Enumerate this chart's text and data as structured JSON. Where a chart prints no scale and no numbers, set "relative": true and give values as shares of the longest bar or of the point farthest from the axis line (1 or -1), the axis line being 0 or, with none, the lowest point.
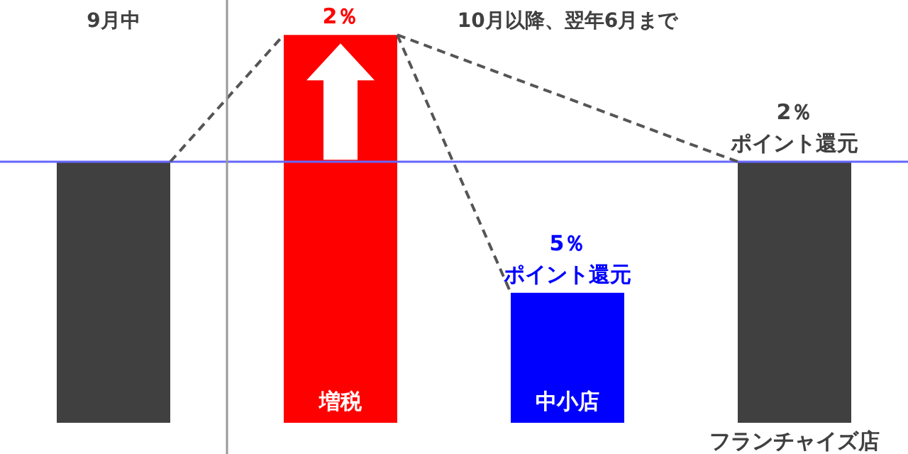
{
  "chart_data": {
    "type": "bar",
    "relative": true,
    "categories": [
      null,
      "増税",
      "中小店",
      "フランチャイズ店"
    ],
    "values": [
      0.673,
      1,
      0.335,
      0.673
    ],
    "colors": [
      "#404040",
      "#ff0000",
      "#0000ff",
      "#404040"
    ],
    "ref_lines": [
      {
        "axis": "y",
        "value": 0.673,
        "color": "#6666ff"
      }
    ],
    "annotations": [
      "9月中",
      "10月以降、翌年6月まで",
      {
        "text": "2％",
        "x": "増税",
        "y": 1
      },
      {
        "text": "5％",
        "x": "中小店",
        "y": 0.335
      },
      {
        "text": "ポイント還元",
        "x": "中小店",
        "y": 0.335
      },
      {
        "text": "2％",
        "x": "フランチャイズ店",
        "y": 0.673
      },
      {
        "text": "ポイント還元",
        "x": "フランチャイズ店",
        "y": 0.673
      }
    ],
    "legend": false
  }
}
